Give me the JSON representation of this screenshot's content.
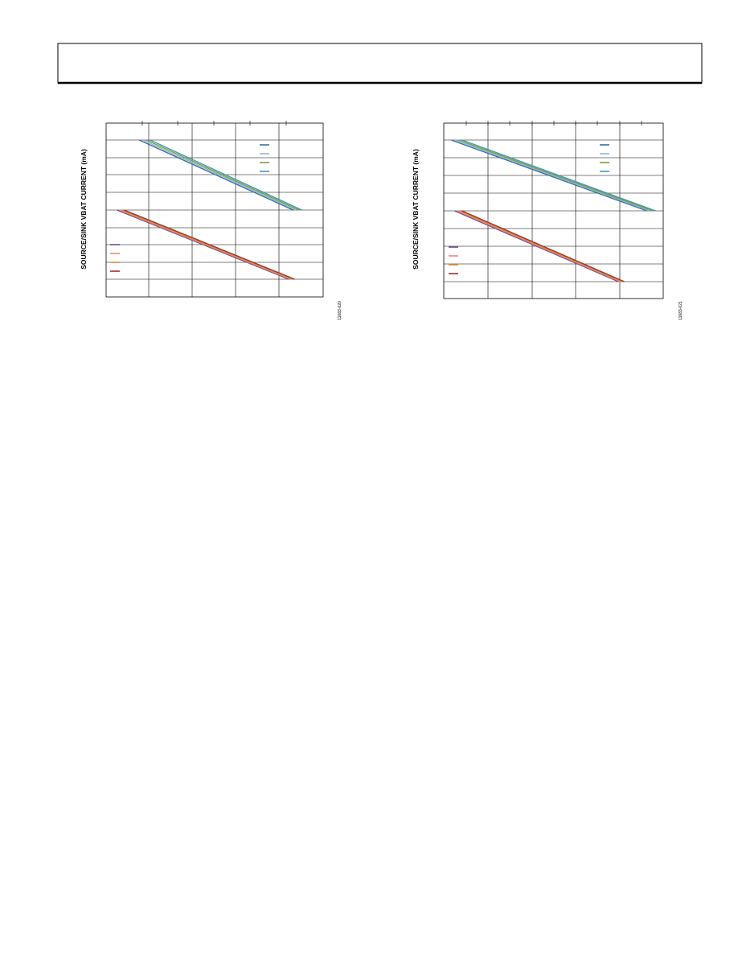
{
  "figures": [
    {
      "y_axis_label": "SOURCE/SINK VBAT CURRENT (mA)",
      "figure_id": "11683-020"
    },
    {
      "y_axis_label": "SOURCE/SINK VBAT CURRENT (mA)",
      "figure_id": "11683-021"
    }
  ]
}
